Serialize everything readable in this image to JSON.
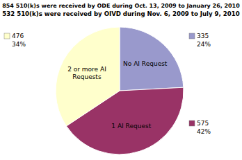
{
  "chart_data": {
    "type": "pie",
    "title": "854 510(k)s were received by ODE during Oct. 13, 2009 to January 26, 2010",
    "subtitle": "532 510(k)s were received by OIVD during Nov. 6, 2009 to July 9, 2010",
    "categories": [
      "No AI Request",
      "1 AI Request",
      "2 or more AI\nRequests"
    ],
    "values": [
      335,
      575,
      476
    ],
    "percents": [
      {
        "value": 24,
        "label": "24%"
      },
      {
        "value": 42,
        "label": "42%"
      },
      {
        "value": 34,
        "label": "34%"
      }
    ],
    "colors": [
      "#9999cc",
      "#993366",
      "#ffffcc"
    ],
    "data_labels": true
  }
}
